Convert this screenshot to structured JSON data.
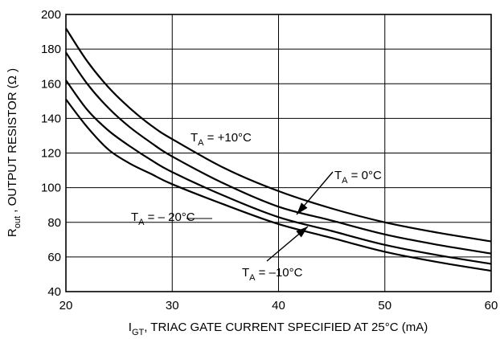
{
  "chart_data": {
    "type": "line",
    "xlabel": "I",
    "xlabel_sub": "GT",
    "xlabel_rest": ", TRIAC GATE CURRENT SPECIFIED AT 25°C (mA)",
    "ylabel": "R",
    "ylabel_sub": "out",
    "ylabel_rest": " , OUTPUT RESISTOR (Ω )",
    "xlim": [
      20,
      60
    ],
    "ylim": [
      40,
      200
    ],
    "x_ticks": [
      "20",
      "30",
      "40",
      "50",
      "60"
    ],
    "y_ticks": [
      "40",
      "60",
      "80",
      "100",
      "120",
      "140",
      "160",
      "180",
      "200"
    ],
    "grid": true,
    "series": [
      {
        "name": "+10°C",
        "x": [
          20,
          22,
          24,
          26,
          28,
          30,
          35,
          40,
          45,
          50,
          55,
          60
        ],
        "y": [
          192,
          173,
          158,
          146,
          136,
          128,
          111,
          98,
          88,
          80,
          74,
          69
        ]
      },
      {
        "name": "0°C",
        "x": [
          20,
          22,
          24,
          26,
          28,
          30,
          35,
          40,
          45,
          50,
          55,
          60
        ],
        "y": [
          178,
          160,
          146,
          135,
          126,
          118,
          102,
          89,
          81,
          73,
          67,
          62
        ]
      },
      {
        "name": "–10°C",
        "x": [
          20,
          22,
          24,
          26,
          28,
          30,
          35,
          40,
          45,
          50,
          55,
          60
        ],
        "y": [
          162,
          145,
          133,
          124,
          116,
          109,
          95,
          83,
          75,
          67,
          61,
          56
        ]
      },
      {
        "name": "– 20°C",
        "x": [
          20,
          22,
          24,
          26,
          28,
          30,
          35,
          40,
          45,
          50,
          55,
          60
        ],
        "y": [
          151,
          135,
          122,
          114,
          108,
          102,
          90,
          79,
          71,
          63,
          57,
          52
        ]
      }
    ],
    "annotations": [
      {
        "prefix": "T",
        "sub": "A",
        "text": " = +10°C"
      },
      {
        "prefix": "T",
        "sub": "A",
        "text": " = 0°C"
      },
      {
        "prefix": "T",
        "sub": "A",
        "text": " = – 20°C"
      },
      {
        "prefix": "T",
        "sub": "A",
        "text": " = –10°C"
      }
    ]
  }
}
